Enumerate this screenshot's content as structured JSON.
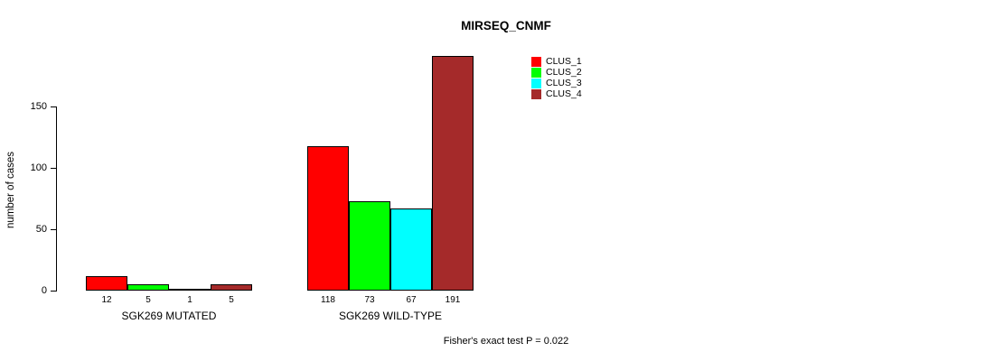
{
  "chart_data": {
    "type": "bar",
    "title": "MIRSEQ_CNMF",
    "ylabel": "number of cases",
    "xlabel": "",
    "ylim": [
      0,
      191
    ],
    "yticks": [
      0,
      50,
      100,
      150
    ],
    "grid": false,
    "legend_position": "top-right",
    "legend": [
      "CLUS_1",
      "CLUS_2",
      "CLUS_3",
      "CLUS_4"
    ],
    "series_colors": [
      "#FF0000",
      "#00FF00",
      "#00FFFF",
      "#A52A2A"
    ],
    "groups": [
      {
        "label": "SGK269 MUTATED",
        "values": [
          12,
          5,
          1,
          5
        ]
      },
      {
        "label": "SGK269 WILD-TYPE",
        "values": [
          118,
          73,
          67,
          191
        ]
      }
    ],
    "annotation": "Fisher's exact test P = 0.022"
  }
}
